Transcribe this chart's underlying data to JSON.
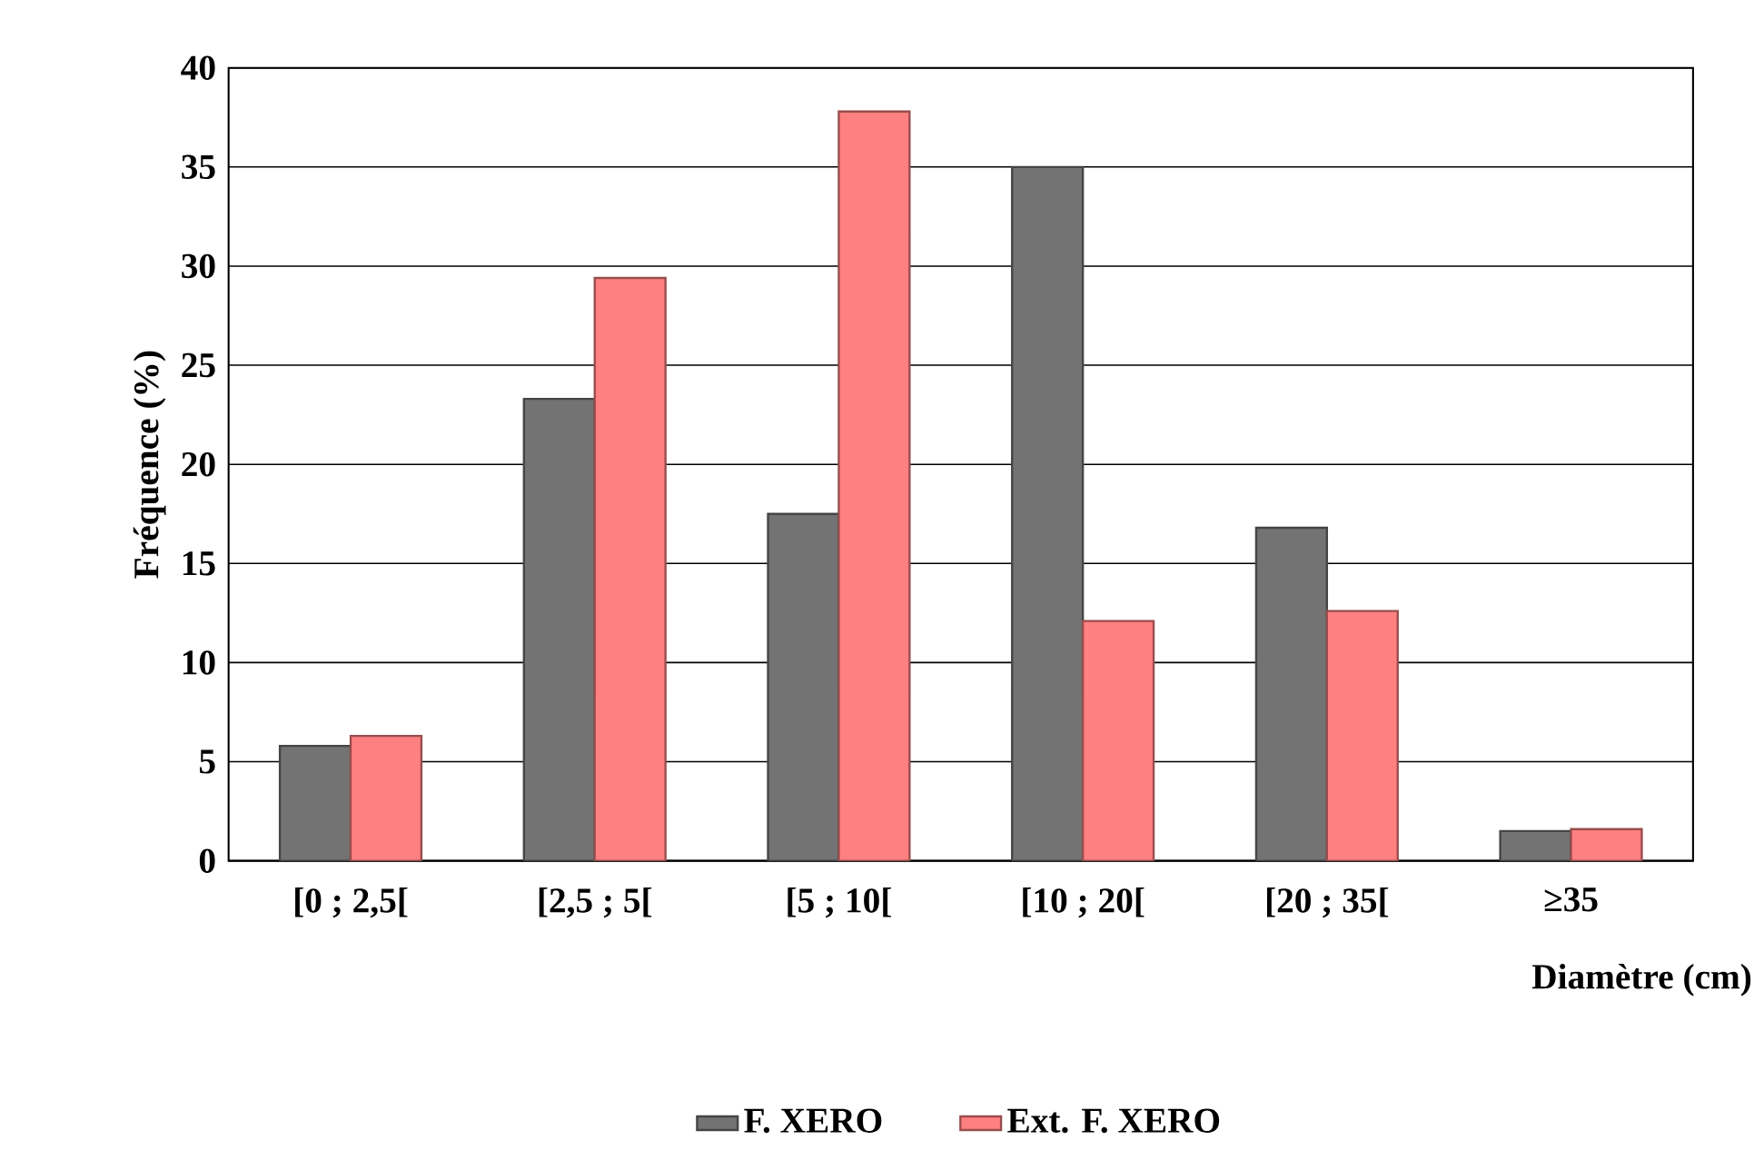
{
  "chart_data": {
    "type": "bar",
    "xlabel": "Diamètre (cm)",
    "ylabel": "Fréquence (%)",
    "categories": [
      "[0 ; 2,5[",
      "[2,5 ; 5[",
      "[5 ; 10[",
      "[10 ; 20[",
      "[20 ; 35[",
      "≥35"
    ],
    "series": [
      {
        "name": "F. XERO",
        "color": "#737373",
        "values": [
          5.8,
          23.3,
          17.5,
          35.0,
          16.8,
          1.5
        ]
      },
      {
        "name": "Ext. F. XERO",
        "color": "#ff8080",
        "values": [
          6.3,
          29.4,
          37.8,
          12.1,
          12.6,
          1.6
        ]
      }
    ],
    "ylim": [
      0,
      40
    ],
    "yticks": [
      0,
      5,
      10,
      15,
      20,
      25,
      30,
      35,
      40
    ],
    "grid": "y",
    "legend": "bottom"
  }
}
